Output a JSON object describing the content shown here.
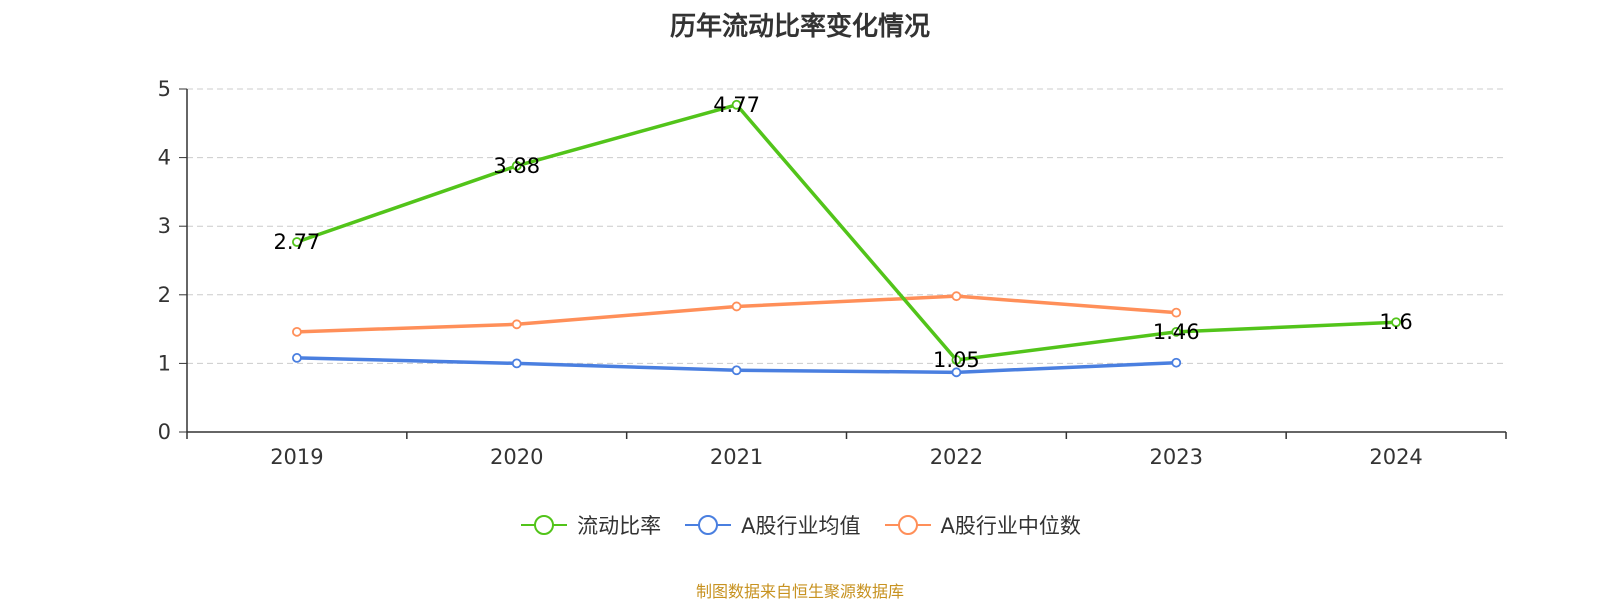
{
  "chart_data": {
    "type": "line",
    "title": "历年流动比率变化情况",
    "categories": [
      "2019",
      "2020",
      "2021",
      "2022",
      "2023",
      "2024"
    ],
    "ylim": [
      0,
      5
    ],
    "yticks": [
      0,
      1,
      2,
      3,
      4,
      5
    ],
    "grid": true,
    "legend_position": "bottom",
    "series": [
      {
        "name": "流动比率",
        "color": "#52c41a",
        "values": [
          2.77,
          3.88,
          4.77,
          1.05,
          1.46,
          1.6
        ],
        "labels": [
          "2.77",
          "3.88",
          "4.77",
          "1.05",
          "1.46",
          "1.6"
        ],
        "show_labels": true
      },
      {
        "name": "A股行业均值",
        "color": "#4a7fe0",
        "values": [
          1.08,
          1.0,
          0.9,
          0.87,
          1.01,
          null
        ],
        "show_labels": false
      },
      {
        "name": "A股行业中位数",
        "color": "#ff8f59",
        "values": [
          1.46,
          1.57,
          1.83,
          1.98,
          1.74,
          null
        ],
        "show_labels": false
      }
    ]
  },
  "source_note": "制图数据来自恒生聚源数据库"
}
